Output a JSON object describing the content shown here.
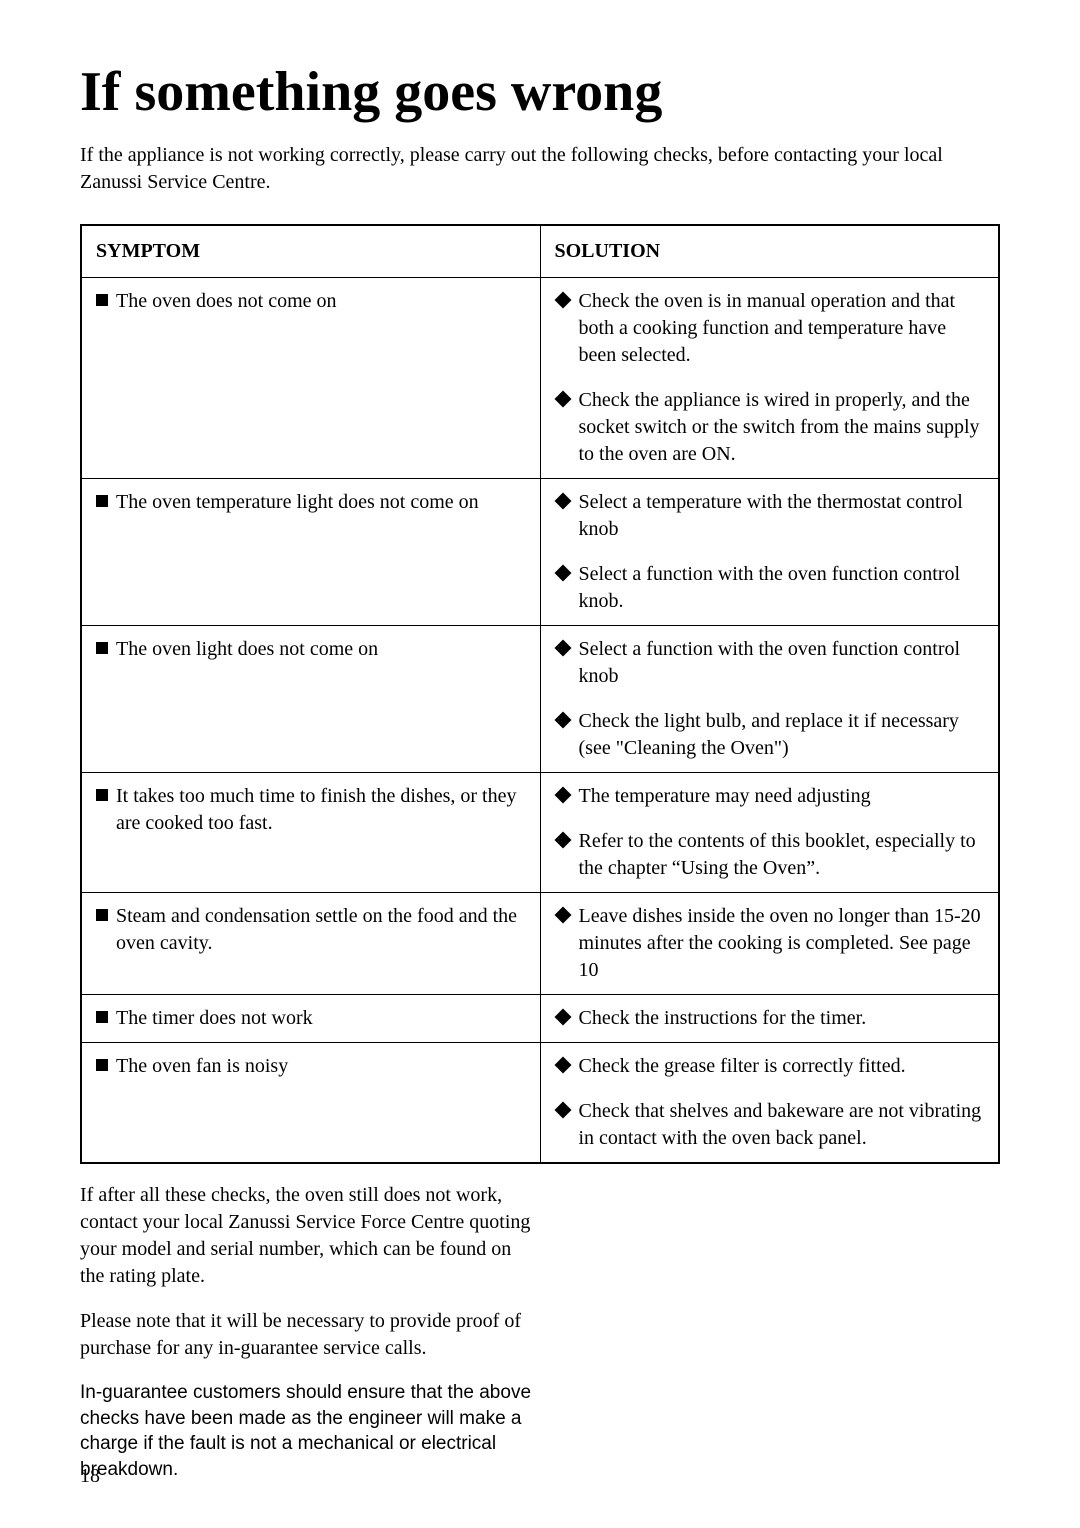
{
  "title": "If something goes wrong",
  "intro": "If the appliance is not working correctly, please carry out the following checks, before contacting your local Zanussi Service Centre.",
  "table": {
    "headers": {
      "symptom": "SYMPTOM",
      "solution": "SOLUTION"
    },
    "rows": [
      {
        "symptoms": [
          "The oven does not come on"
        ],
        "solutions": [
          "Check the oven is in manual operation and that both a cooking function and temperature have been selected.",
          "Check the appliance is wired in properly, and the socket switch or the switch from the mains supply to the oven are ON."
        ]
      },
      {
        "symptoms": [
          "The oven temperature light does not come on"
        ],
        "solutions": [
          "Select a temperature with the thermostat control knob",
          "Select a function with the oven function control knob."
        ]
      },
      {
        "symptoms": [
          "The oven light does not come on"
        ],
        "solutions": [
          "Select a function with the oven function control knob",
          "Check the light bulb, and replace it if necessary (see \"Cleaning the Oven\")"
        ]
      },
      {
        "symptoms": [
          "It takes too much time to finish the dishes, or they are cooked too fast."
        ],
        "solutions": [
          "The temperature may need adjusting",
          "Refer to the contents of this booklet, especially to the chapter “Using the Oven”."
        ]
      },
      {
        "symptoms": [
          "Steam and condensation settle on the food and the oven cavity."
        ],
        "solutions": [
          "Leave dishes inside the oven no longer than 15-20 minutes after the cooking is completed. See page 10"
        ]
      },
      {
        "symptoms": [
          "The timer does not work"
        ],
        "solutions": [
          "Check the instructions for the timer."
        ]
      },
      {
        "symptoms": [
          "The oven fan is noisy"
        ],
        "solutions": [
          "Check the grease filter is correctly fitted.",
          "Check that shelves and bakeware are not vibrating in contact with the oven back panel."
        ]
      }
    ]
  },
  "after": {
    "p1": "If after all these checks, the oven still does not work, contact your local Zanussi Service Force Centre quoting your model and serial number, which can be found on the rating plate.",
    "p2": "Please note that it will be necessary to provide proof of purchase for any in-guarantee service calls.",
    "p3": "In-guarantee customers should ensure that the above checks have been made as the engineer will make a charge if the fault is not a mechanical or electrical breakdown."
  },
  "page_number": "18"
}
